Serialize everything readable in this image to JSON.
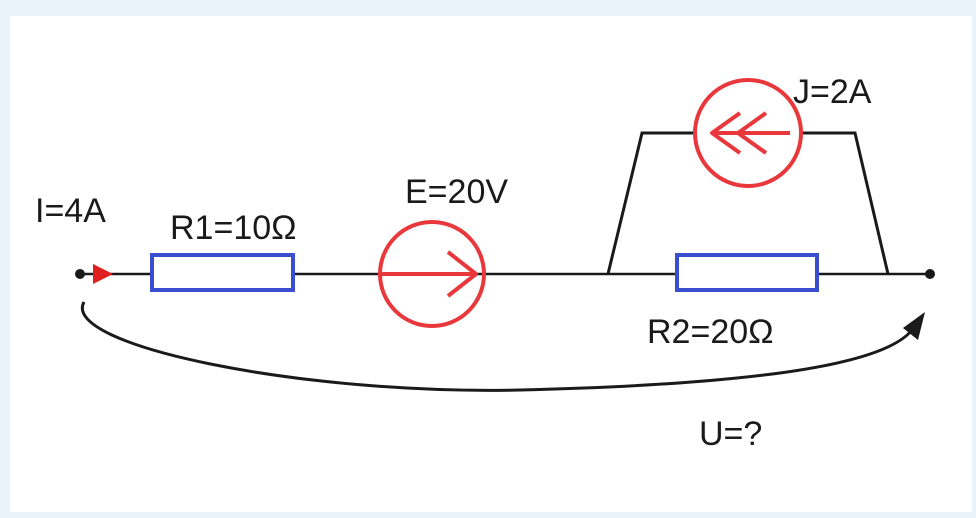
{
  "labels": {
    "current_in": "I=4A",
    "r1": "R1=10Ω",
    "emf": "E=20V",
    "current_source": "J=2A",
    "r2": "R2=20Ω",
    "voltage": "U=?"
  },
  "colors": {
    "wire": "#1a1a1a",
    "resistor": "#3a4fd0",
    "source": "#e8383c",
    "background": "#e9f3f9",
    "panel": "#ffffff"
  }
}
